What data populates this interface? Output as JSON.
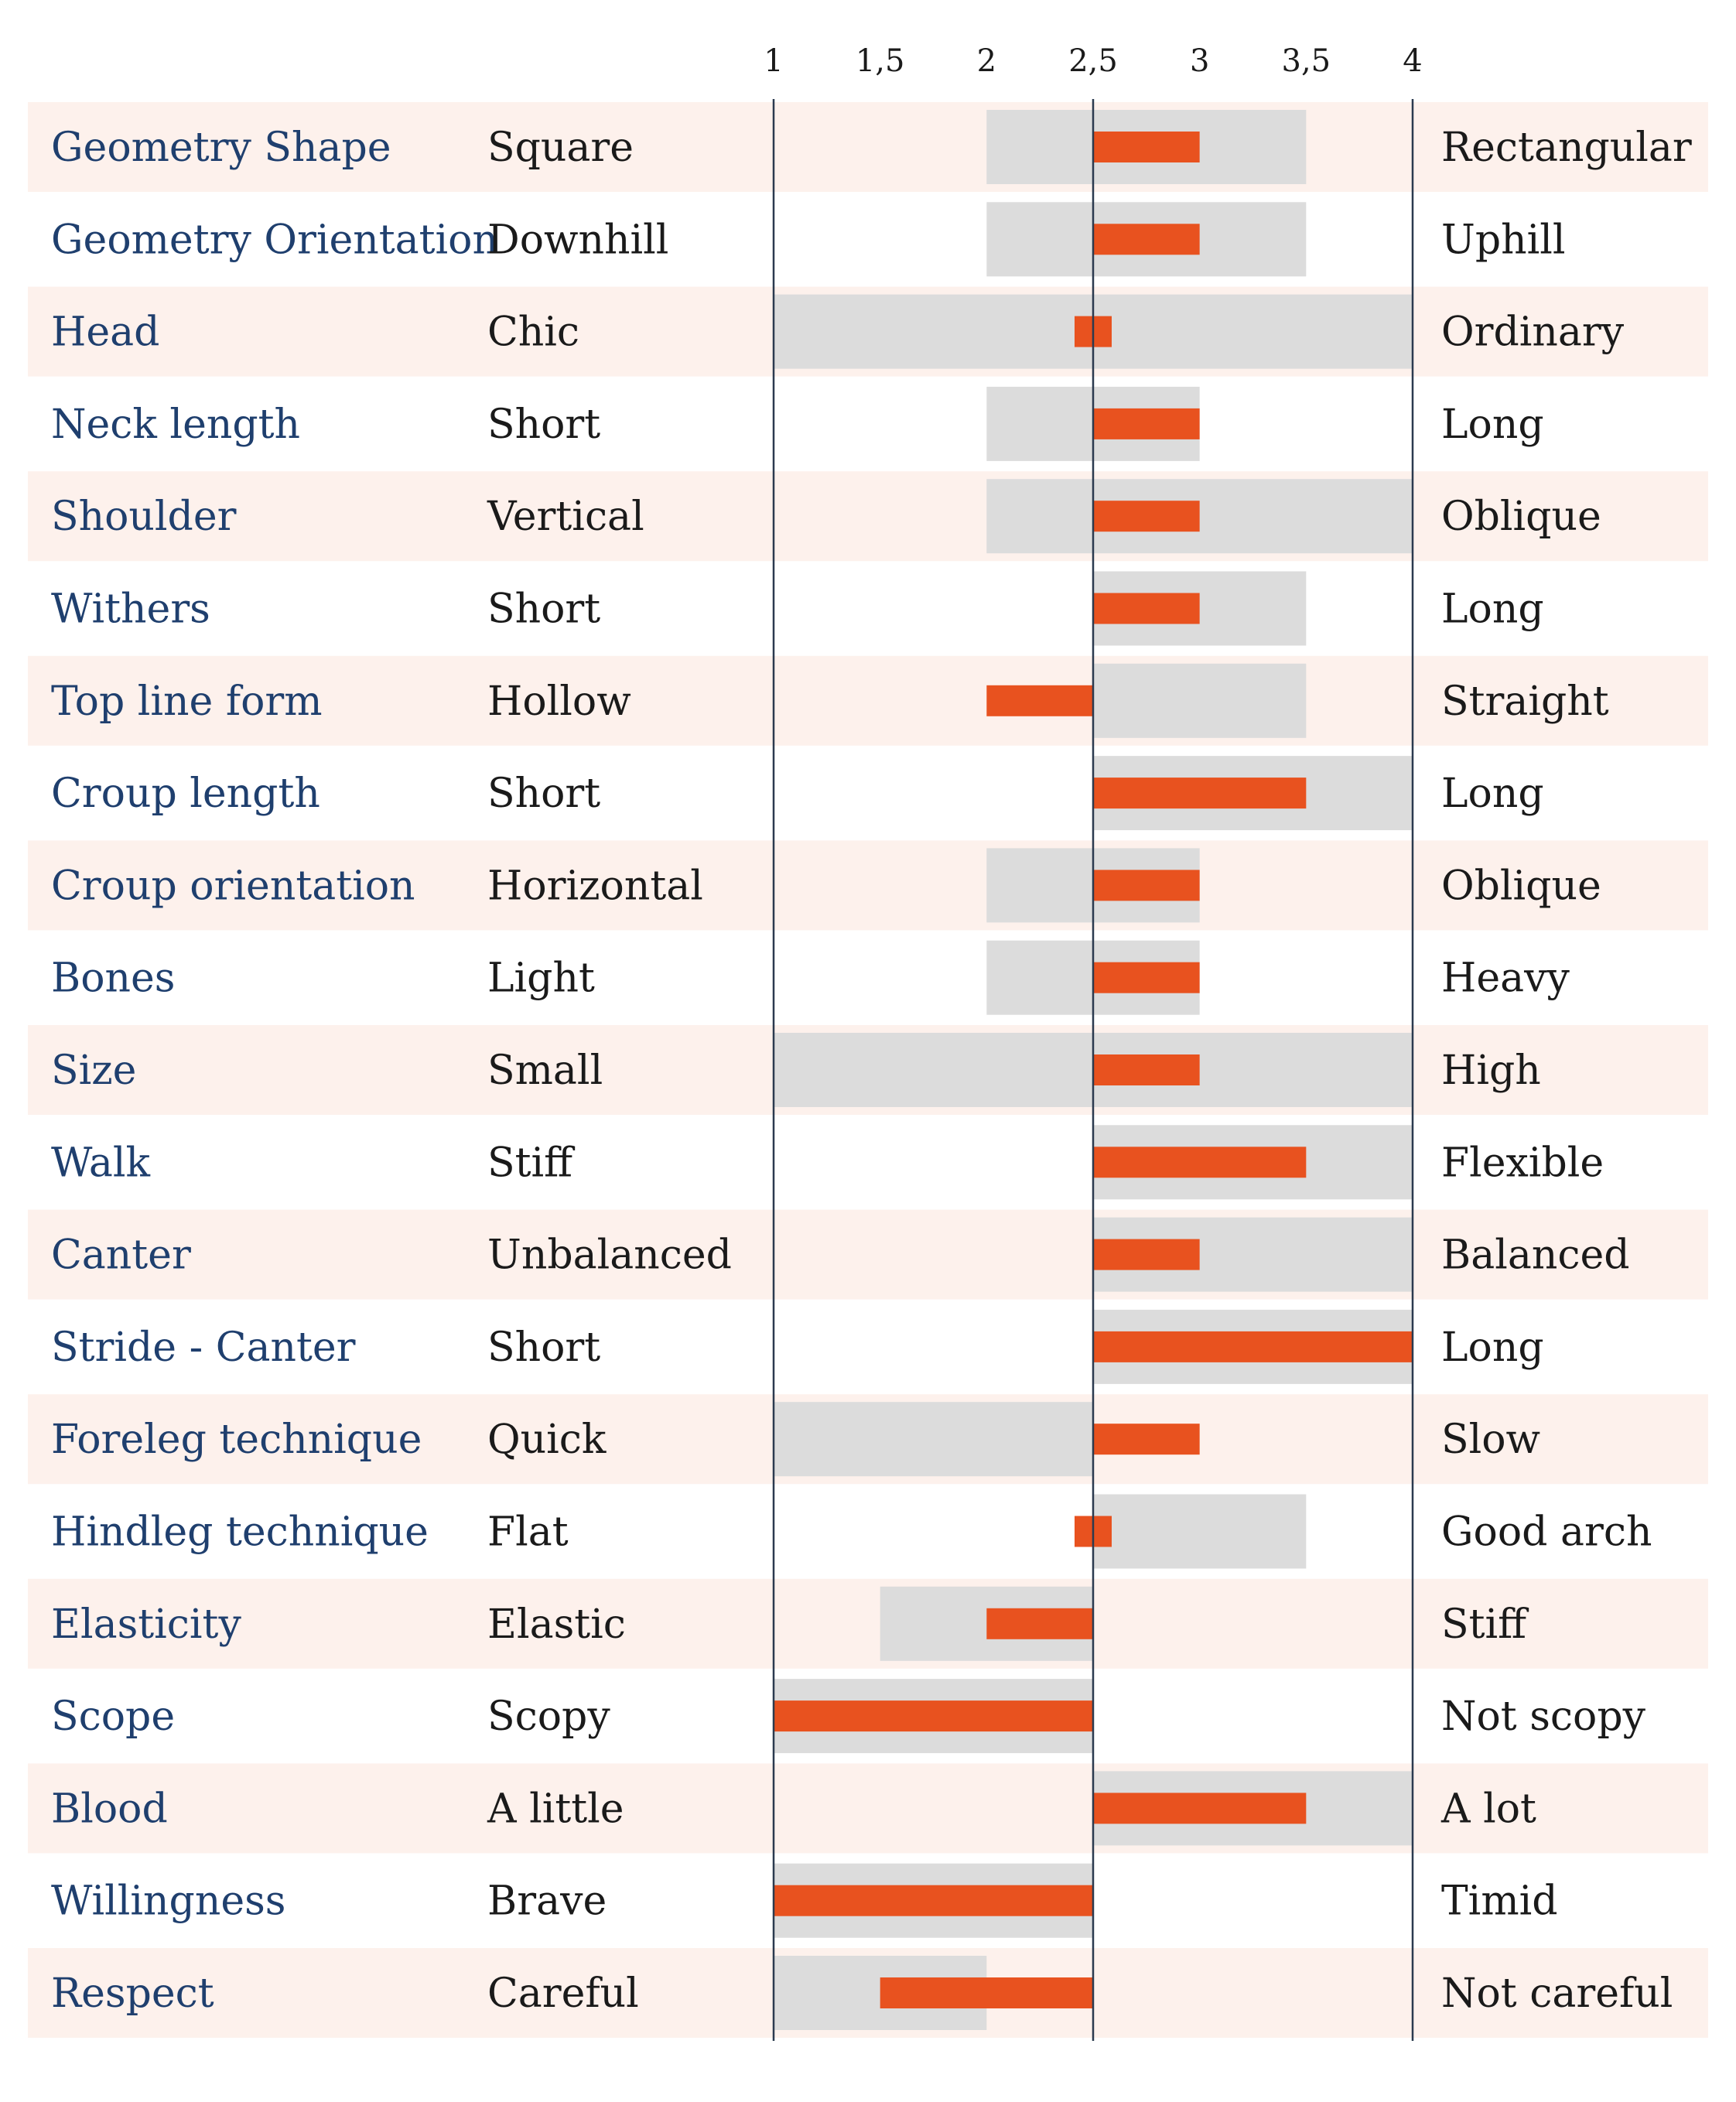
{
  "chart_data": {
    "type": "bar",
    "title": "",
    "xlabel": "",
    "ylabel": "",
    "x_ticks": [
      "1",
      "1,5",
      "2",
      "2,5",
      "3",
      "3,5",
      "4"
    ],
    "xlim": [
      1,
      4
    ],
    "baseline": 2.5,
    "colors": {
      "row_band": "#fdf1ec",
      "range": "#dcdcdc",
      "value": "#e8521f",
      "trait_text": "#1f3f6e",
      "axis": "#2b3a4f"
    },
    "rows": [
      {
        "trait": "Geometry Shape",
        "low": "Square",
        "high": "Rectangular",
        "range": [
          2,
          3.5
        ],
        "value": 3
      },
      {
        "trait": "Geometry Orientation",
        "low": "Downhill",
        "high": "Uphill",
        "range": [
          2,
          3.5
        ],
        "value": 3
      },
      {
        "trait": "Head",
        "low": "Chic",
        "high": "Ordinary",
        "range": [
          1,
          4
        ],
        "value": 2.5
      },
      {
        "trait": "Neck length",
        "low": "Short",
        "high": "Long",
        "range": [
          2,
          3
        ],
        "value": 3
      },
      {
        "trait": "Shoulder",
        "low": "Vertical",
        "high": "Oblique",
        "range": [
          2,
          4
        ],
        "value": 3
      },
      {
        "trait": "Withers",
        "low": "Short",
        "high": "Long",
        "range": [
          2.5,
          3.5
        ],
        "value": 3
      },
      {
        "trait": "Top line form",
        "low": "Hollow",
        "high": "Straight",
        "range": [
          2.5,
          3.5
        ],
        "value": 2
      },
      {
        "trait": "Croup length",
        "low": "Short",
        "high": "Long",
        "range": [
          2.5,
          4
        ],
        "value": 3.5
      },
      {
        "trait": "Croup orientation",
        "low": "Horizontal",
        "high": "Oblique",
        "range": [
          2,
          3
        ],
        "value": 3
      },
      {
        "trait": "Bones",
        "low": "Light",
        "high": "Heavy",
        "range": [
          2,
          3
        ],
        "value": 3
      },
      {
        "trait": "Size",
        "low": "Small",
        "high": "High",
        "range": [
          1,
          4
        ],
        "value": 3
      },
      {
        "trait": "Walk",
        "low": "Stiff",
        "high": "Flexible",
        "range": [
          2.5,
          4
        ],
        "value": 3.5
      },
      {
        "trait": "Canter",
        "low": "Unbalanced",
        "high": "Balanced",
        "range": [
          2.5,
          4
        ],
        "value": 3
      },
      {
        "trait": "Stride - Canter",
        "low": "Short",
        "high": "Long",
        "range": [
          2.5,
          4
        ],
        "value": 4
      },
      {
        "trait": "Foreleg technique",
        "low": "Quick",
        "high": "Slow",
        "range": [
          1,
          2.5
        ],
        "value": 3
      },
      {
        "trait": "Hindleg technique",
        "low": "Flat",
        "high": "Good arch",
        "range": [
          2.5,
          3.5
        ],
        "value": 2.5
      },
      {
        "trait": "Elasticity",
        "low": "Elastic",
        "high": "Stiff",
        "range": [
          1.5,
          2.5
        ],
        "value": 2
      },
      {
        "trait": "Scope",
        "low": "Scopy",
        "high": "Not scopy",
        "range": [
          1,
          2.5
        ],
        "value": 1
      },
      {
        "trait": "Blood",
        "low": "A little",
        "high": "A lot",
        "range": [
          2.5,
          4
        ],
        "value": 3.5
      },
      {
        "trait": "Willingness",
        "low": "Brave",
        "high": "Timid",
        "range": [
          1,
          2.5
        ],
        "value": 1
      },
      {
        "trait": "Respect",
        "low": "Careful",
        "high": "Not careful",
        "range": [
          1,
          2
        ],
        "value": 1.5
      }
    ]
  }
}
